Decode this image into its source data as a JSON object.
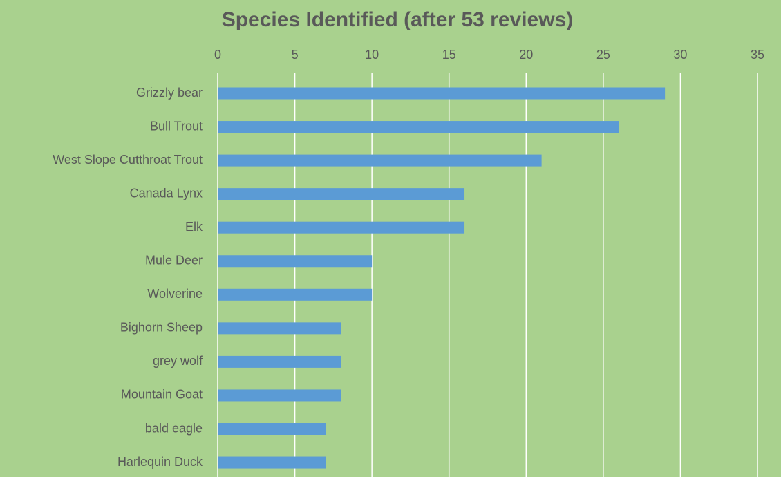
{
  "chart_data": {
    "type": "bar",
    "orientation": "horizontal",
    "title": "Species Identified (after 53 reviews)",
    "categories": [
      "Grizzly bear",
      "Bull Trout",
      "West Slope Cutthroat Trout",
      "Canada Lynx",
      "Elk",
      "Mule Deer",
      "Wolverine",
      "Bighorn Sheep",
      "grey wolf",
      "Mountain Goat",
      "bald eagle",
      "Harlequin Duck"
    ],
    "values": [
      29,
      26,
      21,
      16,
      16,
      10,
      10,
      8,
      8,
      8,
      7,
      7
    ],
    "color": "#5b9bd5",
    "background": "#a9d18e",
    "xaxis_position": "top",
    "xlim": [
      0,
      35
    ],
    "xticks": [
      0,
      5,
      10,
      15,
      20,
      25,
      30,
      35
    ],
    "grid": true
  }
}
